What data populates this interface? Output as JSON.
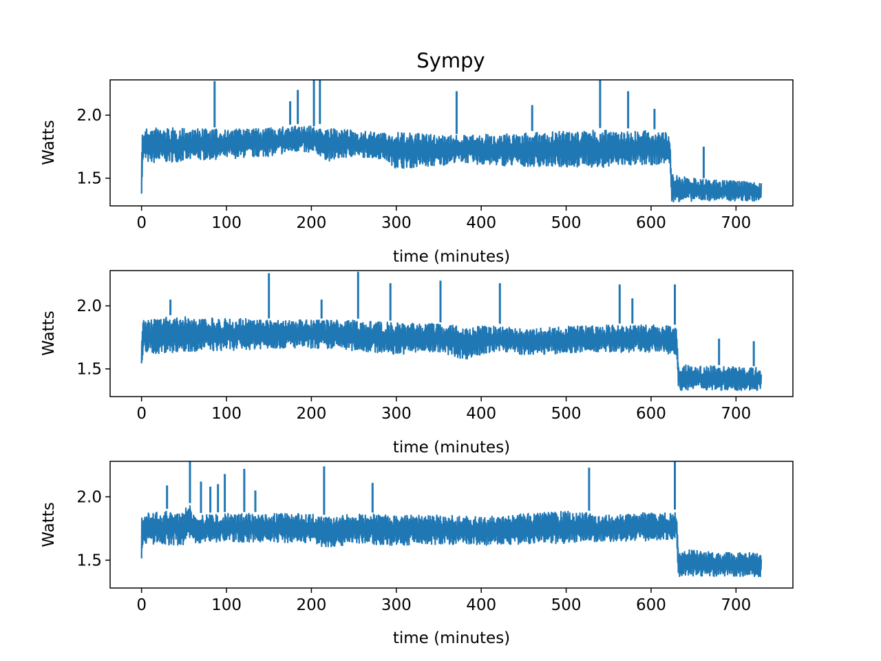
{
  "figure": {
    "title": "Sympy"
  },
  "colors": {
    "series": "#1f77b4",
    "axes": "#000000",
    "background": "#ffffff"
  },
  "chart_data": [
    {
      "type": "line",
      "title": "Sympy",
      "xlabel": "time (minutes)",
      "ylabel": "Watts",
      "xlim": [
        -37,
        767
      ],
      "ylim": [
        1.28,
        2.28
      ],
      "xticks": [
        0,
        100,
        200,
        300,
        400,
        500,
        600,
        700
      ],
      "xtick_labels": [
        "0",
        "100",
        "200",
        "300",
        "400",
        "500",
        "600",
        "700"
      ],
      "yticks": [
        1.5,
        2.0
      ],
      "ytick_labels": [
        "1.5",
        "2.0"
      ],
      "grid": false,
      "series": [
        {
          "color": "#1f77b4",
          "envelope": {
            "x": [
              0,
              2,
              10,
              50,
              100,
              150,
              185,
              190,
              200,
              205,
              210,
              220,
              250,
              285,
              300,
              350,
              372,
              400,
              450,
              500,
              550,
              600,
              622,
              624,
              660,
              700,
              730
            ],
            "max": [
              1.88,
              1.9,
              1.92,
              1.91,
              1.9,
              1.91,
              1.93,
              1.92,
              1.93,
              1.9,
              1.93,
              1.91,
              1.89,
              1.87,
              1.88,
              1.86,
              1.85,
              1.86,
              1.87,
              1.89,
              1.9,
              1.89,
              1.88,
              1.54,
              1.5,
              1.49,
              1.47
            ],
            "min": [
              1.35,
              1.62,
              1.6,
              1.62,
              1.64,
              1.66,
              1.7,
              1.7,
              1.65,
              1.7,
              1.66,
              1.62,
              1.66,
              1.64,
              1.56,
              1.58,
              1.62,
              1.59,
              1.58,
              1.57,
              1.57,
              1.59,
              1.6,
              1.3,
              1.31,
              1.31,
              1.31
            ]
          },
          "spikes": [
            {
              "x": 86,
              "y": 2.27
            },
            {
              "x": 175,
              "y": 2.11
            },
            {
              "x": 184,
              "y": 2.2
            },
            {
              "x": 203,
              "y": 2.28
            },
            {
              "x": 210,
              "y": 2.28
            },
            {
              "x": 371,
              "y": 2.19
            },
            {
              "x": 460,
              "y": 2.08
            },
            {
              "x": 540,
              "y": 2.28
            },
            {
              "x": 573,
              "y": 2.19
            },
            {
              "x": 604,
              "y": 2.05
            },
            {
              "x": 662,
              "y": 1.75
            }
          ]
        }
      ]
    },
    {
      "type": "line",
      "title": "",
      "xlabel": "time (minutes)",
      "ylabel": "Watts",
      "xlim": [
        -37,
        767
      ],
      "ylim": [
        1.28,
        2.28
      ],
      "xticks": [
        0,
        100,
        200,
        300,
        400,
        500,
        600,
        700
      ],
      "xtick_labels": [
        "0",
        "100",
        "200",
        "300",
        "400",
        "500",
        "600",
        "700"
      ],
      "yticks": [
        1.5,
        2.0
      ],
      "ytick_labels": [
        "1.5",
        "2.0"
      ],
      "grid": false,
      "series": [
        {
          "color": "#1f77b4",
          "envelope": {
            "x": [
              0,
              2,
              10,
              50,
              100,
              150,
              200,
              250,
              300,
              350,
              380,
              420,
              425,
              430,
              450,
              500,
              550,
              600,
              630,
              632,
              680,
              730
            ],
            "max": [
              1.92,
              1.91,
              1.92,
              1.93,
              1.92,
              1.9,
              1.9,
              1.9,
              1.88,
              1.87,
              1.85,
              1.85,
              1.87,
              1.84,
              1.83,
              1.85,
              1.86,
              1.86,
              1.85,
              1.55,
              1.53,
              1.52
            ],
            "min": [
              1.35,
              1.62,
              1.6,
              1.62,
              1.63,
              1.65,
              1.65,
              1.63,
              1.6,
              1.62,
              1.56,
              1.63,
              1.64,
              1.62,
              1.6,
              1.61,
              1.62,
              1.62,
              1.6,
              1.32,
              1.32,
              1.32
            ]
          },
          "spikes": [
            {
              "x": 34,
              "y": 2.05
            },
            {
              "x": 150,
              "y": 2.26
            },
            {
              "x": 212,
              "y": 2.05
            },
            {
              "x": 255,
              "y": 2.27
            },
            {
              "x": 293,
              "y": 2.18
            },
            {
              "x": 352,
              "y": 2.2
            },
            {
              "x": 422,
              "y": 2.18
            },
            {
              "x": 563,
              "y": 2.17
            },
            {
              "x": 578,
              "y": 2.06
            },
            {
              "x": 628,
              "y": 2.17
            },
            {
              "x": 680,
              "y": 1.74
            },
            {
              "x": 721,
              "y": 1.72
            }
          ]
        }
      ]
    },
    {
      "type": "line",
      "title": "",
      "xlabel": "time (minutes)",
      "ylabel": "Watts",
      "xlim": [
        -37,
        767
      ],
      "ylim": [
        1.28,
        2.28
      ],
      "xticks": [
        0,
        100,
        200,
        300,
        400,
        500,
        600,
        700
      ],
      "xtick_labels": [
        "0",
        "100",
        "200",
        "300",
        "400",
        "500",
        "600",
        "700"
      ],
      "yticks": [
        1.5,
        2.0
      ],
      "ytick_labels": [
        "1.5",
        "2.0"
      ],
      "grid": false,
      "series": [
        {
          "color": "#1f77b4",
          "envelope": {
            "x": [
              0,
              2,
              10,
              50,
              57,
              60,
              100,
              150,
              200,
              220,
              250,
              300,
              350,
              400,
              450,
              500,
              528,
              530,
              600,
              630,
              632,
              680,
              730
            ],
            "max": [
              1.9,
              1.89,
              1.89,
              1.92,
              1.95,
              1.87,
              1.88,
              1.88,
              1.88,
              1.85,
              1.88,
              1.87,
              1.87,
              1.86,
              1.88,
              1.9,
              1.89,
              1.86,
              1.89,
              1.9,
              1.6,
              1.57,
              1.57
            ],
            "min": [
              1.33,
              1.62,
              1.61,
              1.6,
              1.65,
              1.62,
              1.63,
              1.63,
              1.62,
              1.58,
              1.62,
              1.6,
              1.61,
              1.6,
              1.61,
              1.62,
              1.64,
              1.63,
              1.64,
              1.65,
              1.36,
              1.36,
              1.36
            ]
          },
          "spikes": [
            {
              "x": 30,
              "y": 2.09
            },
            {
              "x": 57,
              "y": 2.28
            },
            {
              "x": 70,
              "y": 2.12
            },
            {
              "x": 81,
              "y": 2.08
            },
            {
              "x": 90,
              "y": 2.1
            },
            {
              "x": 98,
              "y": 2.18
            },
            {
              "x": 121,
              "y": 2.22
            },
            {
              "x": 134,
              "y": 2.05
            },
            {
              "x": 215,
              "y": 2.24
            },
            {
              "x": 272,
              "y": 2.11
            },
            {
              "x": 527,
              "y": 2.23
            },
            {
              "x": 628,
              "y": 2.28
            }
          ]
        }
      ]
    }
  ]
}
